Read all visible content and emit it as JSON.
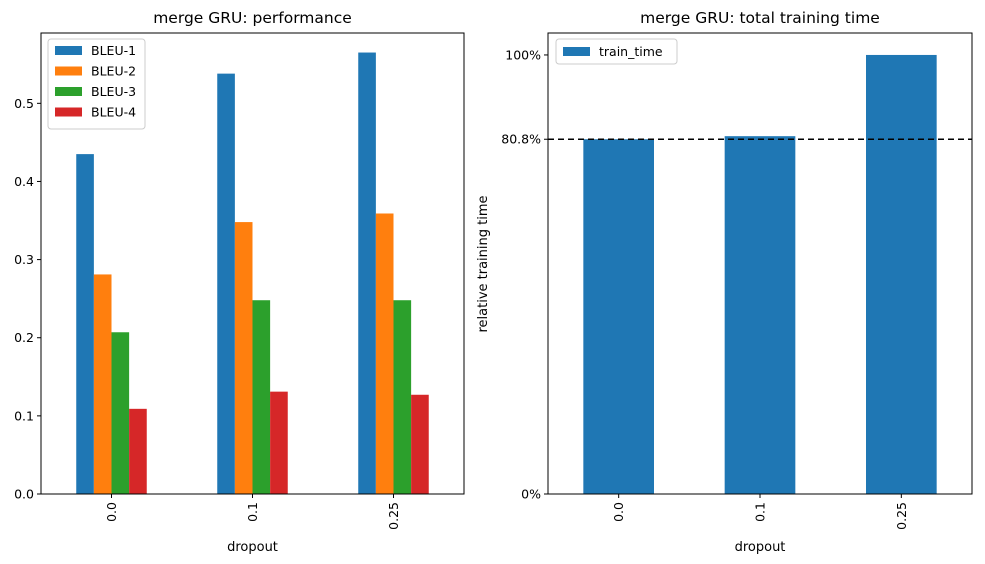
{
  "chart_data": [
    {
      "type": "bar",
      "title": "merge GRU: performance",
      "xlabel": "dropout",
      "ylabel": "",
      "categories": [
        "0.0",
        "0.1",
        "0.25"
      ],
      "ylim": [
        0,
        0.59
      ],
      "yticks": [
        "0.0",
        "0.1",
        "0.2",
        "0.3",
        "0.4",
        "0.5"
      ],
      "legend_position": "top-left",
      "series": [
        {
          "name": "BLEU-1",
          "color": "#1f77b4",
          "values": [
            0.435,
            0.538,
            0.565
          ]
        },
        {
          "name": "BLEU-2",
          "color": "#ff7f0e",
          "values": [
            0.281,
            0.348,
            0.359
          ]
        },
        {
          "name": "BLEU-3",
          "color": "#2ca02c",
          "values": [
            0.207,
            0.248,
            0.248
          ]
        },
        {
          "name": "BLEU-4",
          "color": "#d62728",
          "values": [
            0.109,
            0.131,
            0.127
          ]
        }
      ]
    },
    {
      "type": "bar",
      "title": "merge GRU: total training time",
      "xlabel": "dropout",
      "ylabel": "relative training time",
      "categories": [
        "0.0",
        "0.1",
        "0.25"
      ],
      "ylim": [
        0,
        105
      ],
      "yticks": [
        {
          "value": 0,
          "label": "0%"
        },
        {
          "value": 80.8,
          "label": "80.8%"
        },
        {
          "value": 100,
          "label": "100%"
        }
      ],
      "reference_line": {
        "value": 80.8,
        "style": "dashed",
        "color": "#000000"
      },
      "legend_position": "top-left",
      "series": [
        {
          "name": "train_time",
          "color": "#1f77b4",
          "values": [
            80.8,
            81.5,
            100
          ]
        }
      ]
    }
  ]
}
